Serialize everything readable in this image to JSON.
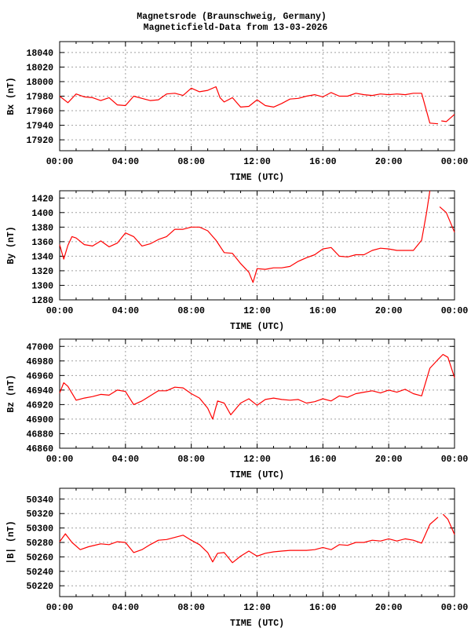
{
  "title_line1": "Magnetsrode (Braunschweig, Germany)",
  "title_line2": "Magneticfield-Data from 13-03-2026",
  "series_color": "#ff0000",
  "chart_data": [
    {
      "type": "line",
      "ylabel": "Bx (nT)",
      "xlabel": "TIME (UTC)",
      "xticks": [
        "00:00",
        "04:00",
        "08:00",
        "12:00",
        "16:00",
        "20:00",
        "00:00"
      ],
      "xlim_hours": [
        0,
        24
      ],
      "ylim": [
        17905,
        18055
      ],
      "yticks": [
        17920,
        17940,
        17960,
        17980,
        18000,
        18020,
        18040
      ],
      "grid": true,
      "x": [
        0,
        0.5,
        1,
        1.5,
        2,
        2.5,
        3,
        3.5,
        4,
        4.5,
        5,
        5.5,
        6,
        6.5,
        7,
        7.5,
        8,
        8.5,
        9,
        9.5,
        9.75,
        10,
        10.5,
        11,
        11.5,
        12,
        12.5,
        13,
        13.5,
        14,
        14.5,
        15,
        15.5,
        16,
        16.5,
        17,
        17.5,
        18,
        18.5,
        19,
        19.5,
        20,
        20.5,
        21,
        21.5,
        22,
        22.5,
        23,
        null,
        23.2,
        23.5,
        24
      ],
      "y": [
        17980,
        17971,
        17983,
        17979,
        17978,
        17974,
        17978,
        17968,
        17967,
        17980,
        17977,
        17974,
        17975,
        17983,
        17984,
        17981,
        17991,
        17986,
        17988,
        17993,
        17978,
        17972,
        17978,
        17965,
        17966,
        17975,
        17967,
        17965,
        17970,
        17976,
        17977,
        17980,
        17982,
        17979,
        17985,
        17980,
        17980,
        17984,
        17982,
        17981,
        17983,
        17982,
        17983,
        17982,
        17984,
        17984,
        17943,
        17942,
        null,
        17946,
        17945,
        17955
      ]
    },
    {
      "type": "line",
      "ylabel": "By (nT)",
      "xlabel": "TIME (UTC)",
      "xticks": [
        "00:00",
        "04:00",
        "08:00",
        "12:00",
        "16:00",
        "20:00",
        "00:00"
      ],
      "xlim_hours": [
        0,
        24
      ],
      "ylim": [
        1280,
        1430
      ],
      "yticks": [
        1280,
        1300,
        1320,
        1340,
        1360,
        1380,
        1400,
        1420
      ],
      "grid": true,
      "x": [
        0,
        0.25,
        0.5,
        0.75,
        1,
        1.5,
        2,
        2.5,
        3,
        3.5,
        4,
        4.5,
        5,
        5.5,
        6,
        6.5,
        7,
        7.5,
        8,
        8.5,
        9,
        9.5,
        10,
        10.5,
        11,
        11.5,
        11.75,
        12,
        12.5,
        13,
        13.5,
        14,
        14.5,
        15,
        15.5,
        16,
        16.5,
        17,
        17.5,
        18,
        18.5,
        19,
        19.5,
        20,
        20.5,
        21,
        21.5,
        22,
        22.3,
        22.5,
        null,
        23.1,
        23.5,
        24
      ],
      "y": [
        1356,
        1336,
        1355,
        1367,
        1365,
        1356,
        1354,
        1361,
        1353,
        1358,
        1372,
        1367,
        1354,
        1357,
        1363,
        1367,
        1377,
        1377,
        1380,
        1380,
        1375,
        1362,
        1345,
        1344,
        1330,
        1318,
        1304,
        1323,
        1322,
        1324,
        1324,
        1326,
        1333,
        1338,
        1342,
        1350,
        1352,
        1340,
        1339,
        1342,
        1342,
        1348,
        1351,
        1350,
        1348,
        1348,
        1348,
        1362,
        1400,
        1430,
        null,
        1408,
        1400,
        1373
      ]
    },
    {
      "type": "line",
      "ylabel": "Bz (nT)",
      "xlabel": "TIME (UTC)",
      "xticks": [
        "00:00",
        "04:00",
        "08:00",
        "12:00",
        "16:00",
        "20:00",
        "00:00"
      ],
      "xlim_hours": [
        0,
        24
      ],
      "ylim": [
        46860,
        47010
      ],
      "yticks": [
        46860,
        46880,
        46900,
        46920,
        46940,
        46960,
        46980,
        47000
      ],
      "grid": true,
      "x": [
        0,
        0.25,
        0.5,
        1,
        1.5,
        2,
        2.5,
        3,
        3.5,
        4,
        4.5,
        5,
        5.5,
        6,
        6.5,
        7,
        7.5,
        8,
        8.5,
        9,
        9.3,
        9.6,
        10,
        10.4,
        11,
        11.5,
        12,
        12.5,
        13,
        13.5,
        14,
        14.5,
        15,
        15.5,
        16,
        16.5,
        17,
        17.5,
        18,
        18.5,
        19,
        19.5,
        20,
        20.5,
        21,
        21.5,
        22,
        22.5,
        23,
        23.3,
        23.6,
        24
      ],
      "y": [
        46936,
        46950,
        46945,
        46926,
        46929,
        46931,
        46934,
        46933,
        46940,
        46938,
        46920,
        46925,
        46932,
        46939,
        46939,
        46944,
        46943,
        46935,
        46929,
        46915,
        46900,
        46925,
        46922,
        46906,
        46922,
        46928,
        46919,
        46927,
        46929,
        46927,
        46926,
        46927,
        46922,
        46924,
        46928,
        46925,
        46932,
        46930,
        46935,
        46937,
        46939,
        46936,
        46940,
        46937,
        46941,
        46935,
        46932,
        46970,
        46982,
        46989,
        46985,
        46957
      ]
    },
    {
      "type": "line",
      "ylabel": "|B| (nT)",
      "xlabel": "TIME (UTC)",
      "xticks": [
        "00:00",
        "04:00",
        "08:00",
        "12:00",
        "16:00",
        "20:00",
        "00:00"
      ],
      "xlim_hours": [
        0,
        24
      ],
      "ylim": [
        50205,
        50355
      ],
      "yticks": [
        50220,
        50240,
        50260,
        50280,
        50300,
        50320,
        50340
      ],
      "grid": true,
      "x": [
        0,
        0.35,
        0.75,
        1.25,
        1.75,
        2.5,
        3,
        3.5,
        4,
        4.5,
        5,
        5.5,
        6,
        6.5,
        7,
        7.5,
        8,
        8.5,
        9,
        9.3,
        9.6,
        10,
        10.5,
        11,
        11.5,
        12,
        12.5,
        13,
        13.5,
        14,
        14.5,
        15,
        15.5,
        16,
        16.5,
        17,
        17.5,
        18,
        18.5,
        19,
        19.5,
        20,
        20.5,
        21,
        21.5,
        22,
        22.5,
        23,
        null,
        23.3,
        23.6,
        24
      ],
      "y": [
        50281,
        50292,
        50280,
        50270,
        50274,
        50278,
        50277,
        50281,
        50280,
        50266,
        50270,
        50277,
        50283,
        50284,
        50287,
        50290,
        50283,
        50277,
        50266,
        50253,
        50265,
        50266,
        50252,
        50261,
        50268,
        50261,
        50265,
        50267,
        50268,
        50269,
        50269,
        50269,
        50270,
        50273,
        50270,
        50277,
        50276,
        50280,
        50280,
        50283,
        50282,
        50285,
        50282,
        50285,
        50283,
        50279,
        50305,
        50315,
        null,
        50319,
        50312,
        50291
      ]
    }
  ]
}
